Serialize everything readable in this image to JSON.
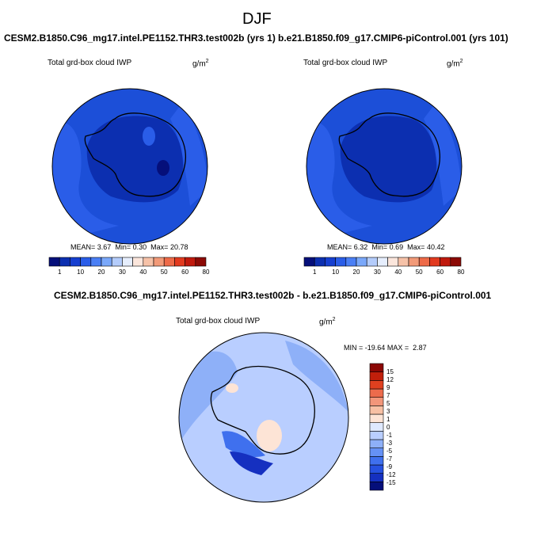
{
  "page": {
    "title": "DJF"
  },
  "colors": {
    "land_outline": "#000000",
    "panel_border": "#000000",
    "abs_palette": [
      "#050f7a",
      "#0c2fb0",
      "#163fd0",
      "#2a5de8",
      "#4a7ff5",
      "#7aa8fa",
      "#b4ccfb",
      "#e6eefd",
      "#fbe6dc",
      "#f6c2a8",
      "#f29a78",
      "#ee6a48",
      "#e23a1f",
      "#c0190d",
      "#8c0a05"
    ],
    "diff_palette": [
      "#050f7a",
      "#1530c0",
      "#2651e0",
      "#3f70ee",
      "#6591f5",
      "#8eb0f8",
      "#b9ceff",
      "#dfe9ff",
      "#fde4d6",
      "#f7c0a4",
      "#f2967a",
      "#ec6b4c",
      "#e0401f",
      "#c11f0b",
      "#8b0805"
    ]
  },
  "chart_data": [
    {
      "type": "heatmap",
      "projection": "south-polar-stereographic",
      "title": "CESM2.B1850.C96_mg17.intel.PE1152.THR3.test002b (yrs 1)",
      "variable": "Total grd-box cloud IWP",
      "units": "g/m",
      "units_sup": "2",
      "stats": {
        "mean_label": "MEAN=",
        "mean": "3.67",
        "min_label": "Min=",
        "min": "0.30",
        "max_label": "Max=",
        "max": "20.78"
      },
      "colorbar": {
        "orientation": "horizontal",
        "levels": [
          "1",
          "10",
          "20",
          "30",
          "40",
          "50",
          "60",
          "80"
        ]
      }
    },
    {
      "type": "heatmap",
      "projection": "south-polar-stereographic",
      "title": "b.e21.B1850.f09_g17.CMIP6-piControl.001 (yrs 101)",
      "variable": "Total grd-box cloud IWP",
      "units": "g/m",
      "units_sup": "2",
      "stats": {
        "mean_label": "MEAN=",
        "mean": "6.32",
        "min_label": "Min=",
        "min": "0.69",
        "max_label": "Max=",
        "max": "40.42"
      },
      "colorbar": {
        "orientation": "horizontal",
        "levels": [
          "1",
          "10",
          "20",
          "30",
          "40",
          "50",
          "60",
          "80"
        ]
      }
    },
    {
      "type": "heatmap",
      "projection": "south-polar-stereographic",
      "title": "CESM2.B1850.C96_mg17.intel.PE1152.THR3.test002b - b.e21.B1850.f09_g17.CMIP6-piControl.001",
      "variable": "Total grd-box cloud IWP",
      "units": "g/m",
      "units_sup": "2",
      "stats": {
        "min_label": "MIN =",
        "min": "-19.64",
        "max_label": "MAX =",
        "max": "2.87"
      },
      "colorbar": {
        "orientation": "vertical",
        "levels": [
          "15",
          "12",
          "9",
          "7",
          "5",
          "3",
          "1",
          "0",
          "-1",
          "-3",
          "-5",
          "-7",
          "-9",
          "-12",
          "-15"
        ]
      }
    }
  ]
}
